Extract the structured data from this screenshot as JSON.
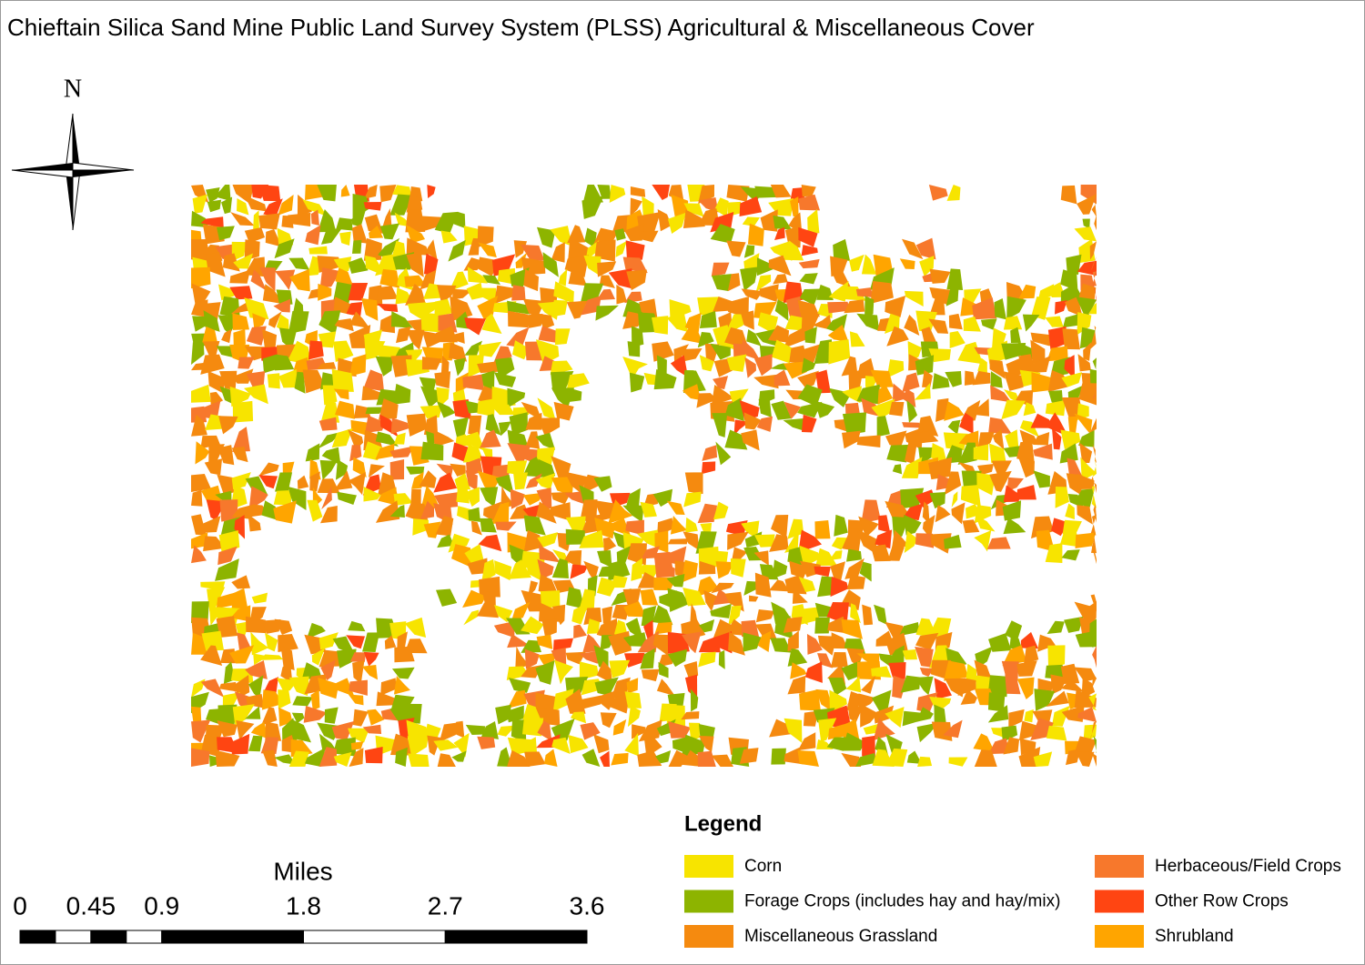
{
  "title": "Chieftain Silica Sand Mine Public Land Survey System (PLSS) Agricultural & Miscellaneous Cover",
  "north_arrow": "N",
  "legend": {
    "title": "Legend",
    "items": [
      {
        "label": "Corn",
        "color": "#f7e400"
      },
      {
        "label": "Forage Crops (includes hay and hay/mix)",
        "color": "#8db400"
      },
      {
        "label": "Miscellaneous Grassland",
        "color": "#f58a0f"
      },
      {
        "label": "Herbaceous/Field Crops",
        "color": "#f7782c"
      },
      {
        "label": "Other Row Crops",
        "color": "#ff4512"
      },
      {
        "label": "Shrubland",
        "color": "#ffa500"
      }
    ]
  },
  "scale_bar": {
    "unit": "Miles",
    "ticks": [
      0,
      0.45,
      0.9,
      1.8,
      2.7,
      3.6
    ]
  }
}
